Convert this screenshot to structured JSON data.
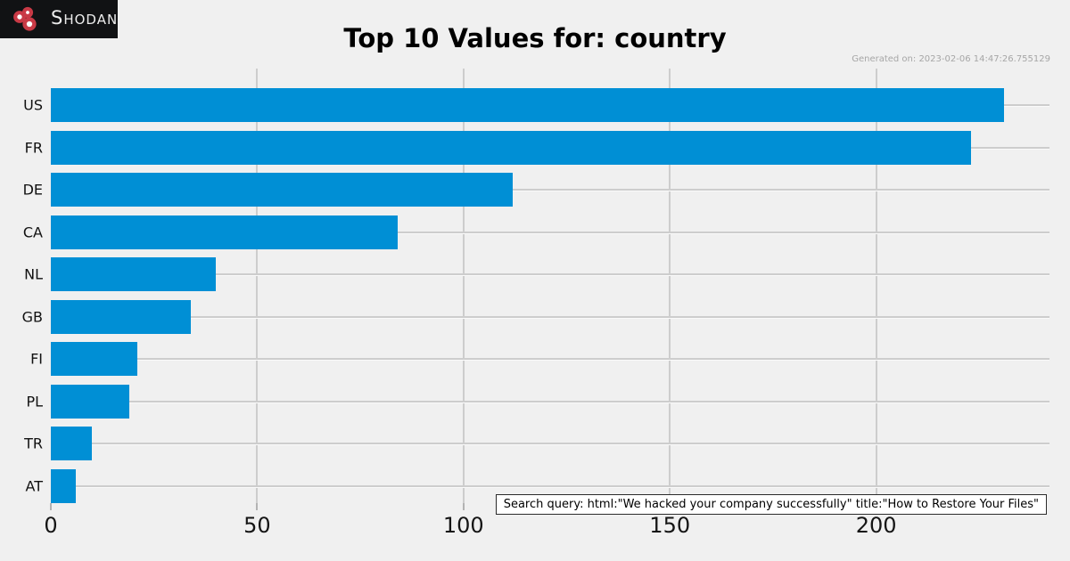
{
  "logo": {
    "brand": "Shodan"
  },
  "header": {
    "title": "Top 10 Values for: country",
    "generated": "Generated on: 2023-02-06 14:47:26.755129"
  },
  "footer": {
    "search_query": "Search query: html:\"We hacked your company successfully\" title:\"How to Restore Your Files\""
  },
  "colors": {
    "background": "#f0f0f0",
    "bar": "#008fd5",
    "grid": "#cdcdcd",
    "logo_background": "#111214",
    "logo_red": "#c93a46",
    "generated_text": "#a6a6a6"
  },
  "chart_data": {
    "type": "bar",
    "orientation": "horizontal",
    "title": "Top 10 Values for: country",
    "categories": [
      "US",
      "FR",
      "DE",
      "CA",
      "NL",
      "GB",
      "FI",
      "PL",
      "TR",
      "AT"
    ],
    "values": [
      231,
      223,
      112,
      84,
      40,
      34,
      21,
      19,
      10,
      6
    ],
    "xlabel": "",
    "ylabel": "",
    "xticks": [
      0,
      50,
      100,
      150,
      200
    ],
    "xlim": [
      0,
      242
    ],
    "grid": true,
    "legend": false,
    "bar_color": "#008fd5"
  }
}
